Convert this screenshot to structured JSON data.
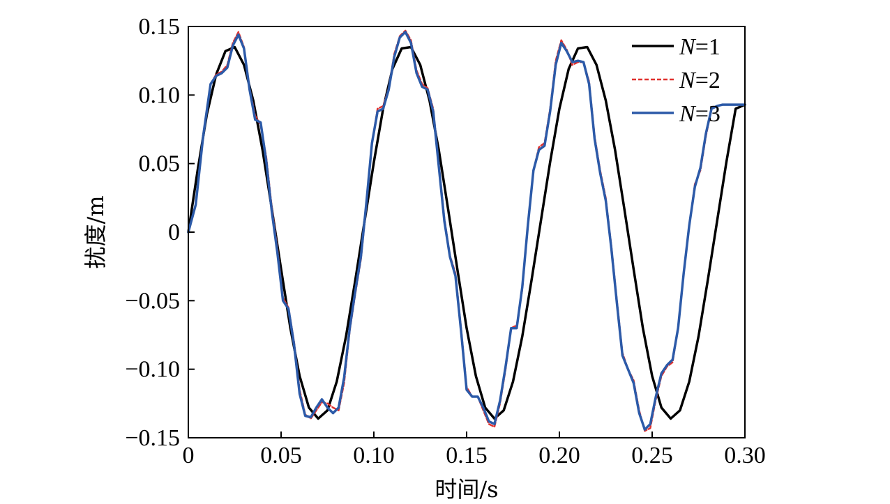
{
  "chart_data": {
    "type": "line",
    "xlabel": "时间/s",
    "ylabel": "扰度/m",
    "xlim": [
      0,
      0.3
    ],
    "ylim": [
      -0.15,
      0.15
    ],
    "x_ticks": [
      "0",
      "0.05",
      "0.10",
      "0.15",
      "0.20",
      "0.25",
      "0.30"
    ],
    "y_ticks": [
      "−0.15",
      "−0.10",
      "−0.05",
      "0",
      "0.05",
      "0.10",
      "0.15"
    ],
    "grid": false,
    "legend_position": "top-right",
    "series": [
      {
        "name": "N=1",
        "color": "#000000",
        "style": "solid",
        "x": [
          0,
          0.005,
          0.01,
          0.015,
          0.02,
          0.025,
          0.03,
          0.035,
          0.04,
          0.045,
          0.05,
          0.055,
          0.06,
          0.065,
          0.07,
          0.075,
          0.08,
          0.085,
          0.09,
          0.095,
          0.1,
          0.105,
          0.11,
          0.115,
          0.12,
          0.125,
          0.13,
          0.135,
          0.14,
          0.145,
          0.15,
          0.155,
          0.16,
          0.165,
          0.17,
          0.175,
          0.18,
          0.185,
          0.19,
          0.195,
          0.2,
          0.205,
          0.21,
          0.215,
          0.22,
          0.225,
          0.23,
          0.235,
          0.24,
          0.245,
          0.25,
          0.255,
          0.26,
          0.265,
          0.27,
          0.275,
          0.28,
          0.285,
          0.29,
          0.295,
          0.3
        ],
        "y": [
          0,
          0.045,
          0.086,
          0.115,
          0.132,
          0.135,
          0.122,
          0.096,
          0.06,
          0.017,
          -0.027,
          -0.07,
          -0.105,
          -0.128,
          -0.136,
          -0.13,
          -0.109,
          -0.076,
          -0.035,
          0.008,
          0.051,
          0.09,
          0.119,
          0.134,
          0.135,
          0.122,
          0.096,
          0.06,
          0.017,
          -0.027,
          -0.07,
          -0.105,
          -0.128,
          -0.136,
          -0.13,
          -0.109,
          -0.076,
          -0.035,
          0.008,
          0.051,
          0.09,
          0.119,
          0.134,
          0.135,
          0.122,
          0.096,
          0.06,
          0.017,
          -0.027,
          -0.07,
          -0.105,
          -0.128,
          -0.136,
          -0.13,
          -0.109,
          -0.076,
          -0.035,
          0.008,
          0.051,
          0.09,
          0.093
        ]
      },
      {
        "name": "N=2",
        "color": "#e0312e",
        "style": "dashed",
        "x": [
          0,
          0.004,
          0.008,
          0.012,
          0.015,
          0.018,
          0.021,
          0.024,
          0.027,
          0.03,
          0.033,
          0.036,
          0.039,
          0.042,
          0.045,
          0.048,
          0.051,
          0.054,
          0.057,
          0.06,
          0.063,
          0.066,
          0.069,
          0.072,
          0.075,
          0.078,
          0.081,
          0.084,
          0.087,
          0.09,
          0.093,
          0.096,
          0.099,
          0.102,
          0.105,
          0.108,
          0.111,
          0.114,
          0.117,
          0.12,
          0.123,
          0.126,
          0.129,
          0.132,
          0.135,
          0.138,
          0.141,
          0.144,
          0.147,
          0.15,
          0.153,
          0.156,
          0.159,
          0.162,
          0.165,
          0.168,
          0.171,
          0.174,
          0.177,
          0.18,
          0.183,
          0.186,
          0.189,
          0.192,
          0.195,
          0.198,
          0.201,
          0.204,
          0.207,
          0.21,
          0.213,
          0.216,
          0.219,
          0.222,
          0.225,
          0.228,
          0.231,
          0.234,
          0.237,
          0.24,
          0.243,
          0.246,
          0.249,
          0.252,
          0.255,
          0.258,
          0.261,
          0.264,
          0.267,
          0.27,
          0.273,
          0.276,
          0.279,
          0.282,
          0.285,
          0.288,
          0.291,
          0.294,
          0.297,
          0.3
        ],
        "y": [
          0,
          0.02,
          0.07,
          0.108,
          0.115,
          0.117,
          0.122,
          0.138,
          0.146,
          0.135,
          0.105,
          0.085,
          0.078,
          0.055,
          0.018,
          -0.012,
          -0.048,
          -0.055,
          -0.08,
          -0.115,
          -0.133,
          -0.136,
          -0.13,
          -0.124,
          -0.125,
          -0.128,
          -0.13,
          -0.11,
          -0.072,
          -0.045,
          -0.02,
          0.02,
          0.065,
          0.09,
          0.092,
          0.105,
          0.13,
          0.143,
          0.147,
          0.14,
          0.118,
          0.108,
          0.105,
          0.09,
          0.05,
          0.01,
          -0.017,
          -0.03,
          -0.07,
          -0.113,
          -0.12,
          -0.12,
          -0.13,
          -0.14,
          -0.142,
          -0.125,
          -0.1,
          -0.07,
          -0.068,
          -0.042,
          0.005,
          0.045,
          0.062,
          0.065,
          0.09,
          0.125,
          0.14,
          0.133,
          0.122,
          0.124,
          0.124,
          0.11,
          0.07,
          0.045,
          0.025,
          -0.01,
          -0.05,
          -0.088,
          -0.1,
          -0.108,
          -0.13,
          -0.145,
          -0.143,
          -0.122,
          -0.105,
          -0.098,
          -0.095,
          -0.07,
          -0.03,
          0.005,
          0.035,
          0.045,
          0.07,
          0.09,
          0.092,
          0.093,
          0.093,
          0.093,
          0.093,
          0.093
        ]
      },
      {
        "name": "N=3",
        "color": "#2c5aa8",
        "style": "solid",
        "x": [
          0,
          0.004,
          0.008,
          0.012,
          0.015,
          0.018,
          0.021,
          0.024,
          0.027,
          0.03,
          0.033,
          0.036,
          0.039,
          0.042,
          0.045,
          0.048,
          0.051,
          0.054,
          0.057,
          0.06,
          0.063,
          0.066,
          0.069,
          0.072,
          0.075,
          0.078,
          0.081,
          0.084,
          0.087,
          0.09,
          0.093,
          0.096,
          0.099,
          0.102,
          0.105,
          0.108,
          0.111,
          0.114,
          0.117,
          0.12,
          0.123,
          0.126,
          0.129,
          0.132,
          0.135,
          0.138,
          0.141,
          0.144,
          0.147,
          0.15,
          0.153,
          0.156,
          0.159,
          0.162,
          0.165,
          0.168,
          0.171,
          0.174,
          0.177,
          0.18,
          0.183,
          0.186,
          0.189,
          0.192,
          0.195,
          0.198,
          0.201,
          0.204,
          0.207,
          0.21,
          0.213,
          0.216,
          0.219,
          0.222,
          0.225,
          0.228,
          0.231,
          0.234,
          0.237,
          0.24,
          0.243,
          0.246,
          0.249,
          0.252,
          0.255,
          0.258,
          0.261,
          0.264,
          0.267,
          0.27,
          0.273,
          0.276,
          0.279,
          0.282,
          0.285,
          0.288,
          0.291,
          0.294,
          0.297,
          0.3
        ],
        "y": [
          0,
          0.02,
          0.07,
          0.108,
          0.114,
          0.116,
          0.12,
          0.136,
          0.144,
          0.134,
          0.104,
          0.082,
          0.08,
          0.052,
          0.015,
          -0.015,
          -0.05,
          -0.056,
          -0.082,
          -0.118,
          -0.134,
          -0.135,
          -0.128,
          -0.122,
          -0.128,
          -0.132,
          -0.128,
          -0.106,
          -0.07,
          -0.043,
          -0.018,
          0.022,
          0.065,
          0.088,
          0.09,
          0.104,
          0.128,
          0.142,
          0.146,
          0.138,
          0.116,
          0.106,
          0.104,
          0.088,
          0.048,
          0.008,
          -0.018,
          -0.032,
          -0.072,
          -0.115,
          -0.12,
          -0.12,
          -0.128,
          -0.138,
          -0.14,
          -0.123,
          -0.098,
          -0.07,
          -0.07,
          -0.04,
          0.005,
          0.045,
          0.06,
          0.063,
          0.088,
          0.122,
          0.138,
          0.132,
          0.124,
          0.125,
          0.124,
          0.108,
          0.068,
          0.043,
          0.023,
          -0.012,
          -0.052,
          -0.09,
          -0.1,
          -0.11,
          -0.132,
          -0.144,
          -0.14,
          -0.12,
          -0.103,
          -0.097,
          -0.093,
          -0.07,
          -0.03,
          0.005,
          0.033,
          0.047,
          0.072,
          0.09,
          0.092,
          0.093,
          0.093,
          0.093,
          0.093,
          0.093
        ]
      }
    ]
  }
}
